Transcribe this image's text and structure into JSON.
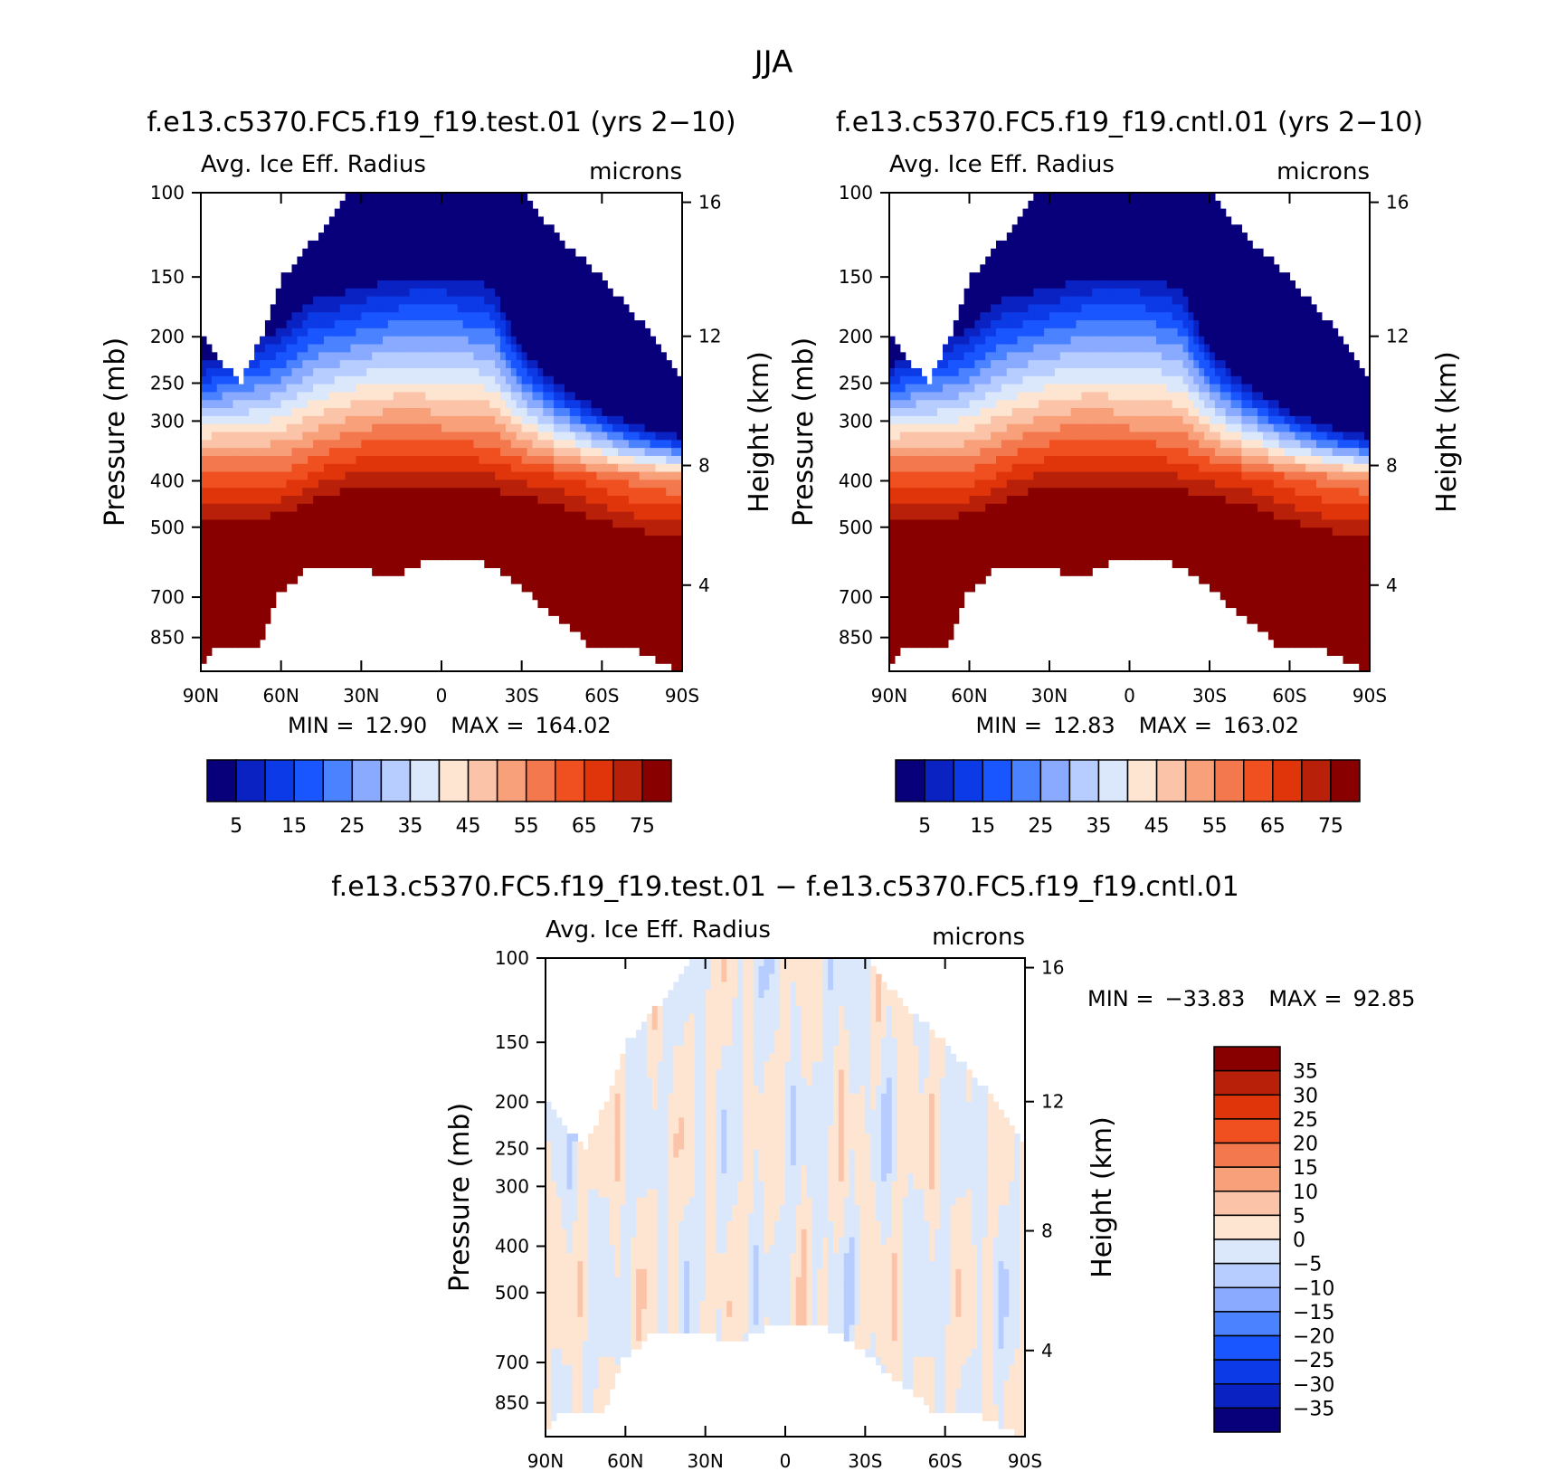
{
  "figure": {
    "title": "JJA"
  },
  "colors": {
    "abs_palette": [
      "#08007a",
      "#0a22c2",
      "#0b3ae6",
      "#1a56ff",
      "#4b82ff",
      "#89aaff",
      "#b7cdff",
      "#dbe8fb",
      "#fde5d2",
      "#fbc4a8",
      "#f7a07a",
      "#f3784e",
      "#f0501f",
      "#e0340b",
      "#b8200a",
      "#880000"
    ],
    "diff_palette": [
      "#08007a",
      "#0a22c2",
      "#0b3ae6",
      "#1a56ff",
      "#4b82ff",
      "#89aaff",
      "#b7cdff",
      "#dbe8fb",
      "#fde5d2",
      "#fbc4a8",
      "#f7a07a",
      "#f3784e",
      "#f0501f",
      "#e0340b",
      "#b8200a",
      "#880000"
    ]
  },
  "chart_data": [
    {
      "type": "heatmap",
      "title": "f.e13.c5370.FC5.f19_f19.test.01 (yrs 2−10)",
      "subtitle_left": "Avg. Ice Eff. Radius",
      "subtitle_right": "microns",
      "ylabel": "Pressure (mb)",
      "ylabel_right": "Height (km)",
      "x_ticks": [
        "90N",
        "60N",
        "30N",
        "0",
        "30S",
        "60S",
        "90S"
      ],
      "y_ticks": [
        "100",
        "150",
        "200",
        "250",
        "300",
        "400",
        "500",
        "700",
        "850"
      ],
      "y_ticks_right": [
        "16",
        "12",
        "8",
        "4"
      ],
      "xlim": [
        90,
        -90
      ],
      "ylim": [
        1000,
        100
      ],
      "y_scale": "log",
      "stats": {
        "min_label": "MIN =",
        "min": "12.90",
        "max_label": "MAX =",
        "max": "164.02"
      },
      "colorbar": {
        "orientation": "horizontal",
        "levels": [
          5,
          10,
          15,
          20,
          25,
          30,
          35,
          40,
          45,
          50,
          55,
          60,
          65,
          70,
          75
        ],
        "labels": [
          "5",
          "15",
          "25",
          "35",
          "45",
          "55",
          "65",
          "75"
        ]
      },
      "field": {
        "kind": "abs",
        "jet_shift": 0,
        "coarse_profile": [
          [
            -90,
            22,
            26,
            4.5
          ],
          [
            -60,
            20,
            24,
            4.6
          ],
          [
            -45,
            18,
            21,
            4.8
          ],
          [
            -30,
            17,
            19,
            4.9
          ],
          [
            -10,
            16,
            18,
            5.0
          ],
          [
            10,
            16,
            18,
            5.1
          ],
          [
            20,
            17,
            19,
            5.0
          ],
          [
            30,
            18.5,
            21,
            4.8
          ],
          [
            50,
            20,
            24,
            4.5
          ],
          [
            90,
            24,
            28,
            4.2
          ]
        ],
        "top_mask": [
          [
            -90,
            200
          ],
          [
            -75,
            250
          ],
          [
            -60,
            150
          ],
          [
            -35,
            100
          ],
          [
            30,
            100
          ],
          [
            60,
            150
          ],
          [
            80,
            200
          ],
          [
            90,
            250
          ]
        ],
        "bottom_mask": [
          [
            -90,
            1000
          ],
          [
            -85,
            880
          ],
          [
            -68,
            880
          ],
          [
            -62,
            700
          ],
          [
            -52,
            620
          ],
          [
            -38,
            600
          ],
          [
            -25,
            620
          ],
          [
            -15,
            620
          ],
          [
            -5,
            580
          ],
          [
            5,
            580
          ],
          [
            18,
            600
          ],
          [
            26,
            640
          ],
          [
            34,
            700
          ],
          [
            45,
            780
          ],
          [
            55,
            880
          ],
          [
            70,
            880
          ],
          [
            90,
            1000
          ]
        ]
      }
    },
    {
      "type": "heatmap",
      "title": "f.e13.c5370.FC5.f19_f19.cntl.01 (yrs 2−10)",
      "subtitle_left": "Avg. Ice Eff. Radius",
      "subtitle_right": "microns",
      "ylabel": "Pressure (mb)",
      "ylabel_right": "Height (km)",
      "x_ticks": [
        "90N",
        "60N",
        "30N",
        "0",
        "30S",
        "60S",
        "90S"
      ],
      "y_ticks": [
        "100",
        "150",
        "200",
        "250",
        "300",
        "400",
        "500",
        "700",
        "850"
      ],
      "y_ticks_right": [
        "16",
        "12",
        "8",
        "4"
      ],
      "xlim": [
        90,
        -90
      ],
      "ylim": [
        1000,
        100
      ],
      "y_scale": "log",
      "stats": {
        "min_label": "MIN =",
        "min": "12.83",
        "max_label": "MAX =",
        "max": "163.02"
      },
      "colorbar": {
        "orientation": "horizontal",
        "levels": [
          5,
          10,
          15,
          20,
          25,
          30,
          35,
          40,
          45,
          50,
          55,
          60,
          65,
          70,
          75
        ],
        "labels": [
          "5",
          "15",
          "25",
          "35",
          "45",
          "55",
          "65",
          "75"
        ]
      },
      "field": {
        "kind": "abs",
        "jet_shift": 0.15,
        "coarse_profile": [
          [
            -90,
            22,
            26,
            4.5
          ],
          [
            -60,
            20,
            24,
            4.6
          ],
          [
            -45,
            18,
            21,
            4.8
          ],
          [
            -30,
            17,
            19,
            4.9
          ],
          [
            -10,
            16,
            18,
            5.0
          ],
          [
            10,
            16,
            18,
            5.1
          ],
          [
            20,
            17,
            19,
            5.0
          ],
          [
            30,
            18.5,
            21,
            4.8
          ],
          [
            50,
            20,
            24,
            4.5
          ],
          [
            90,
            24,
            28,
            4.2
          ]
        ],
        "top_mask": [
          [
            -90,
            200
          ],
          [
            -75,
            250
          ],
          [
            -60,
            150
          ],
          [
            -35,
            100
          ],
          [
            30,
            100
          ],
          [
            60,
            150
          ],
          [
            80,
            200
          ],
          [
            90,
            250
          ]
        ],
        "bottom_mask": [
          [
            -90,
            1000
          ],
          [
            -85,
            880
          ],
          [
            -68,
            880
          ],
          [
            -62,
            700
          ],
          [
            -52,
            620
          ],
          [
            -38,
            600
          ],
          [
            -25,
            620
          ],
          [
            -15,
            620
          ],
          [
            -5,
            580
          ],
          [
            5,
            580
          ],
          [
            18,
            600
          ],
          [
            26,
            640
          ],
          [
            34,
            700
          ],
          [
            45,
            780
          ],
          [
            55,
            880
          ],
          [
            70,
            880
          ],
          [
            90,
            1000
          ]
        ]
      }
    },
    {
      "type": "heatmap",
      "title": "f.e13.c5370.FC5.f19_f19.test.01 − f.e13.c5370.FC5.f19_f19.cntl.01",
      "subtitle_left": "Avg. Ice Eff. Radius",
      "subtitle_right": "microns",
      "ylabel": "Pressure (mb)",
      "ylabel_right": "Height (km)",
      "x_ticks": [
        "90N",
        "60N",
        "30N",
        "0",
        "30S",
        "60S",
        "90S"
      ],
      "y_ticks": [
        "100",
        "150",
        "200",
        "250",
        "300",
        "400",
        "500",
        "700",
        "850"
      ],
      "y_ticks_right": [
        "16",
        "12",
        "8",
        "4"
      ],
      "xlim": [
        90,
        -90
      ],
      "ylim": [
        1000,
        100
      ],
      "y_scale": "log",
      "stats": {
        "min_label": "MIN =",
        "min": "−33.83",
        "max_label": "MAX =",
        "max": "92.85"
      },
      "colorbar": {
        "orientation": "vertical",
        "levels": [
          -35,
          -30,
          -25,
          -20,
          -15,
          -10,
          -5,
          0,
          5,
          10,
          15,
          20,
          25,
          30,
          35
        ],
        "labels": [
          "35",
          "30",
          "25",
          "20",
          "15",
          "10",
          "5",
          "0",
          "−5",
          "−10",
          "−15",
          "−20",
          "−25",
          "−30",
          "−35"
        ]
      },
      "field": {
        "kind": "diff",
        "top_mask": [
          [
            -90,
            200
          ],
          [
            -75,
            250
          ],
          [
            -60,
            150
          ],
          [
            -35,
            100
          ],
          [
            30,
            100
          ],
          [
            60,
            150
          ],
          [
            80,
            200
          ],
          [
            90,
            250
          ]
        ],
        "bottom_mask": [
          [
            -90,
            1000
          ],
          [
            -85,
            880
          ],
          [
            -68,
            880
          ],
          [
            -62,
            700
          ],
          [
            -52,
            620
          ],
          [
            -38,
            600
          ],
          [
            -25,
            620
          ],
          [
            -15,
            620
          ],
          [
            -5,
            580
          ],
          [
            5,
            580
          ],
          [
            18,
            600
          ],
          [
            26,
            640
          ],
          [
            34,
            700
          ],
          [
            45,
            780
          ],
          [
            55,
            880
          ],
          [
            70,
            880
          ],
          [
            90,
            1000
          ]
        ]
      }
    }
  ]
}
